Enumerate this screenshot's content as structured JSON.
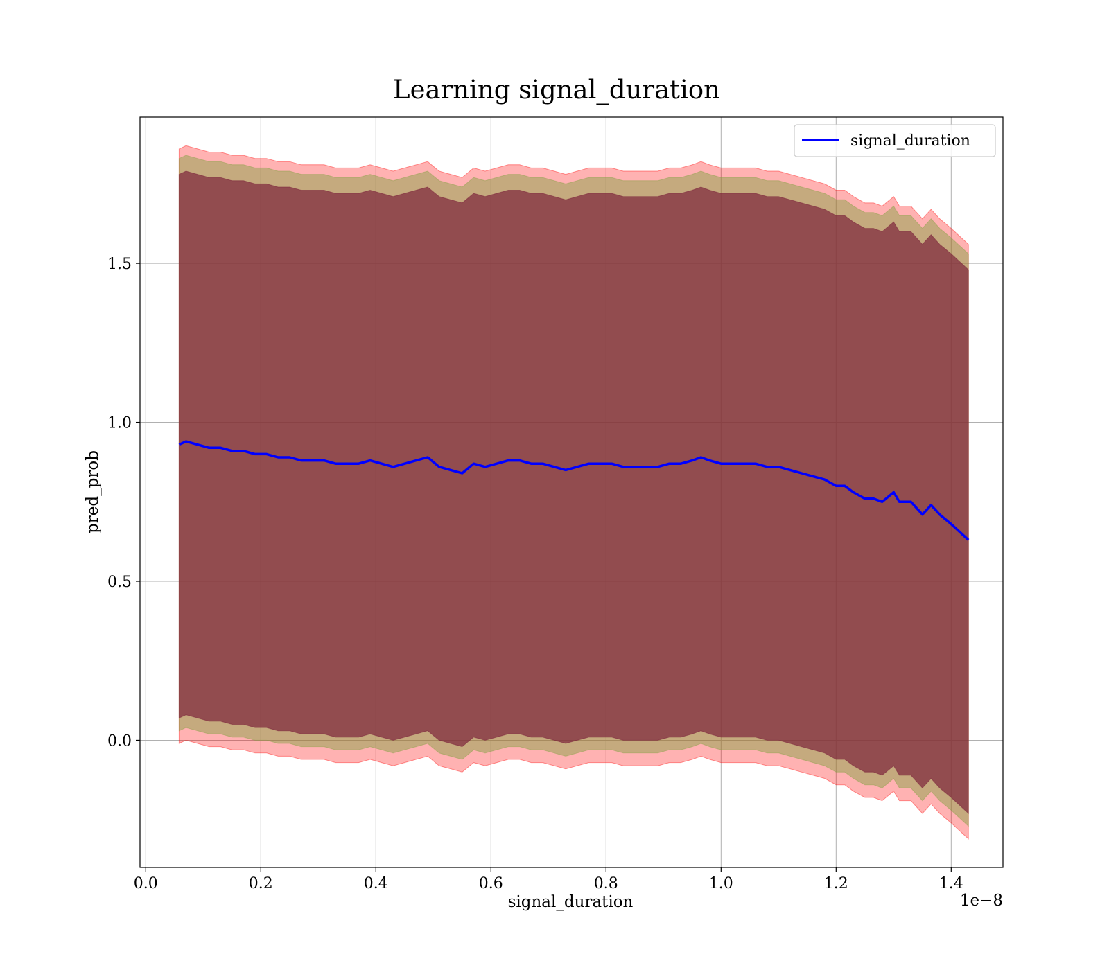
{
  "chart_data": {
    "type": "line",
    "title": "Learning signal_duration",
    "xlabel": "signal_duration",
    "ylabel": "pred_prob",
    "x_offset_label": "1e−8",
    "xlim": [
      -0.01,
      1.49
    ],
    "ylim": [
      -0.4,
      1.96
    ],
    "x_ticks": [
      0.0,
      0.2,
      0.4,
      0.6,
      0.8,
      1.0,
      1.2,
      1.4
    ],
    "x_tick_labels": [
      "0.0",
      "0.2",
      "0.4",
      "0.6",
      "0.8",
      "1.0",
      "1.2",
      "1.4"
    ],
    "y_ticks": [
      0.0,
      0.5,
      1.0,
      1.5
    ],
    "y_tick_labels": [
      "0.0",
      "0.5",
      "1.0",
      "1.5"
    ],
    "grid": true,
    "legend_position": "top-right",
    "colors": {
      "line": "#0000ff",
      "outer_band": "#ff0000",
      "middle_band": "#7f9f3f",
      "inner_band": "#7a1f3a",
      "grid": "#b0b0b0"
    },
    "series": [
      {
        "name": "signal_duration",
        "x": [
          0.058,
          0.07,
          0.09,
          0.11,
          0.13,
          0.15,
          0.17,
          0.19,
          0.21,
          0.23,
          0.25,
          0.27,
          0.29,
          0.31,
          0.33,
          0.35,
          0.37,
          0.39,
          0.41,
          0.43,
          0.45,
          0.47,
          0.49,
          0.51,
          0.53,
          0.55,
          0.57,
          0.59,
          0.61,
          0.63,
          0.65,
          0.67,
          0.69,
          0.71,
          0.73,
          0.75,
          0.77,
          0.79,
          0.81,
          0.83,
          0.85,
          0.87,
          0.89,
          0.91,
          0.93,
          0.95,
          0.965,
          0.98,
          1.0,
          1.02,
          1.04,
          1.06,
          1.08,
          1.1,
          1.12,
          1.14,
          1.16,
          1.18,
          1.2,
          1.215,
          1.23,
          1.25,
          1.265,
          1.28,
          1.3,
          1.31,
          1.33,
          1.35,
          1.365,
          1.38,
          1.4,
          1.43
        ],
        "y": [
          0.93,
          0.94,
          0.93,
          0.92,
          0.92,
          0.91,
          0.91,
          0.9,
          0.9,
          0.89,
          0.89,
          0.88,
          0.88,
          0.88,
          0.87,
          0.87,
          0.87,
          0.88,
          0.87,
          0.86,
          0.87,
          0.88,
          0.89,
          0.86,
          0.85,
          0.84,
          0.87,
          0.86,
          0.87,
          0.88,
          0.88,
          0.87,
          0.87,
          0.86,
          0.85,
          0.86,
          0.87,
          0.87,
          0.87,
          0.86,
          0.86,
          0.86,
          0.86,
          0.87,
          0.87,
          0.88,
          0.89,
          0.88,
          0.87,
          0.87,
          0.87,
          0.87,
          0.86,
          0.86,
          0.85,
          0.84,
          0.83,
          0.82,
          0.8,
          0.8,
          0.78,
          0.76,
          0.76,
          0.75,
          0.78,
          0.75,
          0.75,
          0.71,
          0.74,
          0.71,
          0.68,
          0.63
        ]
      }
    ],
    "bands": {
      "inner": {
        "upper_offset": 0.85,
        "lower_offset": -0.86
      },
      "middle": {
        "upper_offset": 0.9,
        "lower_offset": -0.9
      },
      "outer": {
        "upper_offset": 0.93,
        "lower_offset": -0.94
      }
    }
  }
}
